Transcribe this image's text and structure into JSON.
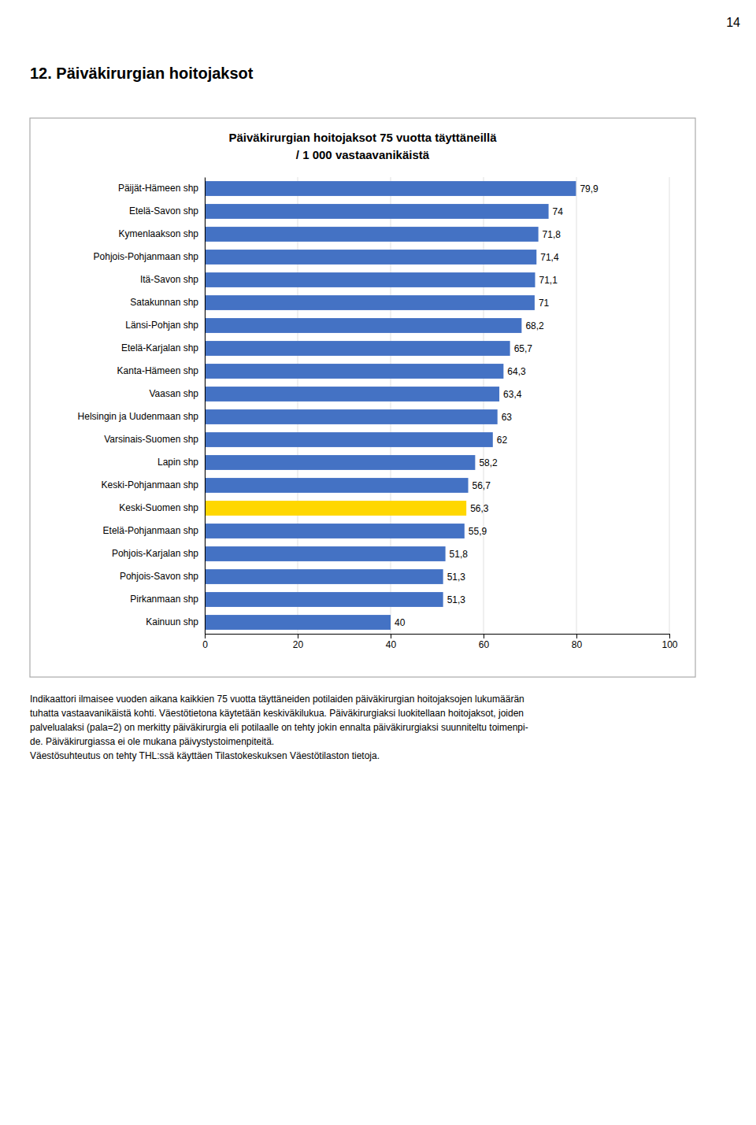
{
  "page_number": "14",
  "section_title": "12.    Päiväkirurgian hoitojaksot",
  "footnote": [
    "Indikaattori ilmaisee vuoden aikana kaikkien 75 vuotta täyttäneiden potilaiden päiväkirurgian hoitojaksojen lukumäärän",
    "tuhatta vastaavanikäistä kohti. Väestötietona käytetään keskiväkilukua. Päiväkirurgiaksi luokitellaan hoitojaksot, joiden",
    "palvelualaksi (pala=2) on merkitty päiväkirurgia eli potilaalle on tehty jokin ennalta päiväkirurgiaksi suunniteltu toimenpi-",
    "de. Päiväkirurgiassa ei ole mukana päivystystoimenpiteitä.",
    "Väestösuhteutus on tehty THL:ssä käyttäen Tilastokeskuksen Väestötilaston tietoja."
  ],
  "chart_data": {
    "type": "bar",
    "orientation": "horizontal",
    "title": "Päiväkirurgian hoitojaksot 75 vuotta täyttäneillä",
    "subtitle": "/ 1 000 vastaavanikäistä",
    "categories": [
      "Päijät-Hämeen shp",
      "Etelä-Savon shp",
      "Kymenlaakson shp",
      "Pohjois-Pohjanmaan shp",
      "Itä-Savon shp",
      "Satakunnan shp",
      "Länsi-Pohjan shp",
      "Etelä-Karjalan shp",
      "Kanta-Hämeen shp",
      "Vaasan shp",
      "Helsingin ja Uudenmaan shp",
      "Varsinais-Suomen shp",
      "Lapin shp",
      "Keski-Pohjanmaan shp",
      "Keski-Suomen shp",
      "Etelä-Pohjanmaan shp",
      "Pohjois-Karjalan shp",
      "Pohjois-Savon shp",
      "Pirkanmaan shp",
      "Kainuun shp"
    ],
    "values": [
      79.9,
      74,
      71.8,
      71.4,
      71.1,
      71,
      68.2,
      65.7,
      64.3,
      63.4,
      63,
      62,
      58.2,
      56.7,
      56.3,
      55.9,
      51.8,
      51.3,
      51.3,
      40
    ],
    "value_labels": [
      "79,9",
      "74",
      "71,8",
      "71,4",
      "71,1",
      "71",
      "68,2",
      "65,7",
      "64,3",
      "63,4",
      "63",
      "62",
      "58,2",
      "56,7",
      "56,3",
      "55,9",
      "51,8",
      "51,3",
      "51,3",
      "40"
    ],
    "data_labels": true,
    "colors": [
      "#4472C4",
      "#4472C4",
      "#4472C4",
      "#4472C4",
      "#4472C4",
      "#4472C4",
      "#4472C4",
      "#4472C4",
      "#4472C4",
      "#4472C4",
      "#4472C4",
      "#4472C4",
      "#4472C4",
      "#4472C4",
      "#FFD700",
      "#4472C4",
      "#4472C4",
      "#4472C4",
      "#4472C4",
      "#4472C4"
    ],
    "xlim": [
      0,
      100
    ],
    "xticks": [
      0,
      20,
      40,
      60,
      80,
      100
    ],
    "grid": true
  }
}
